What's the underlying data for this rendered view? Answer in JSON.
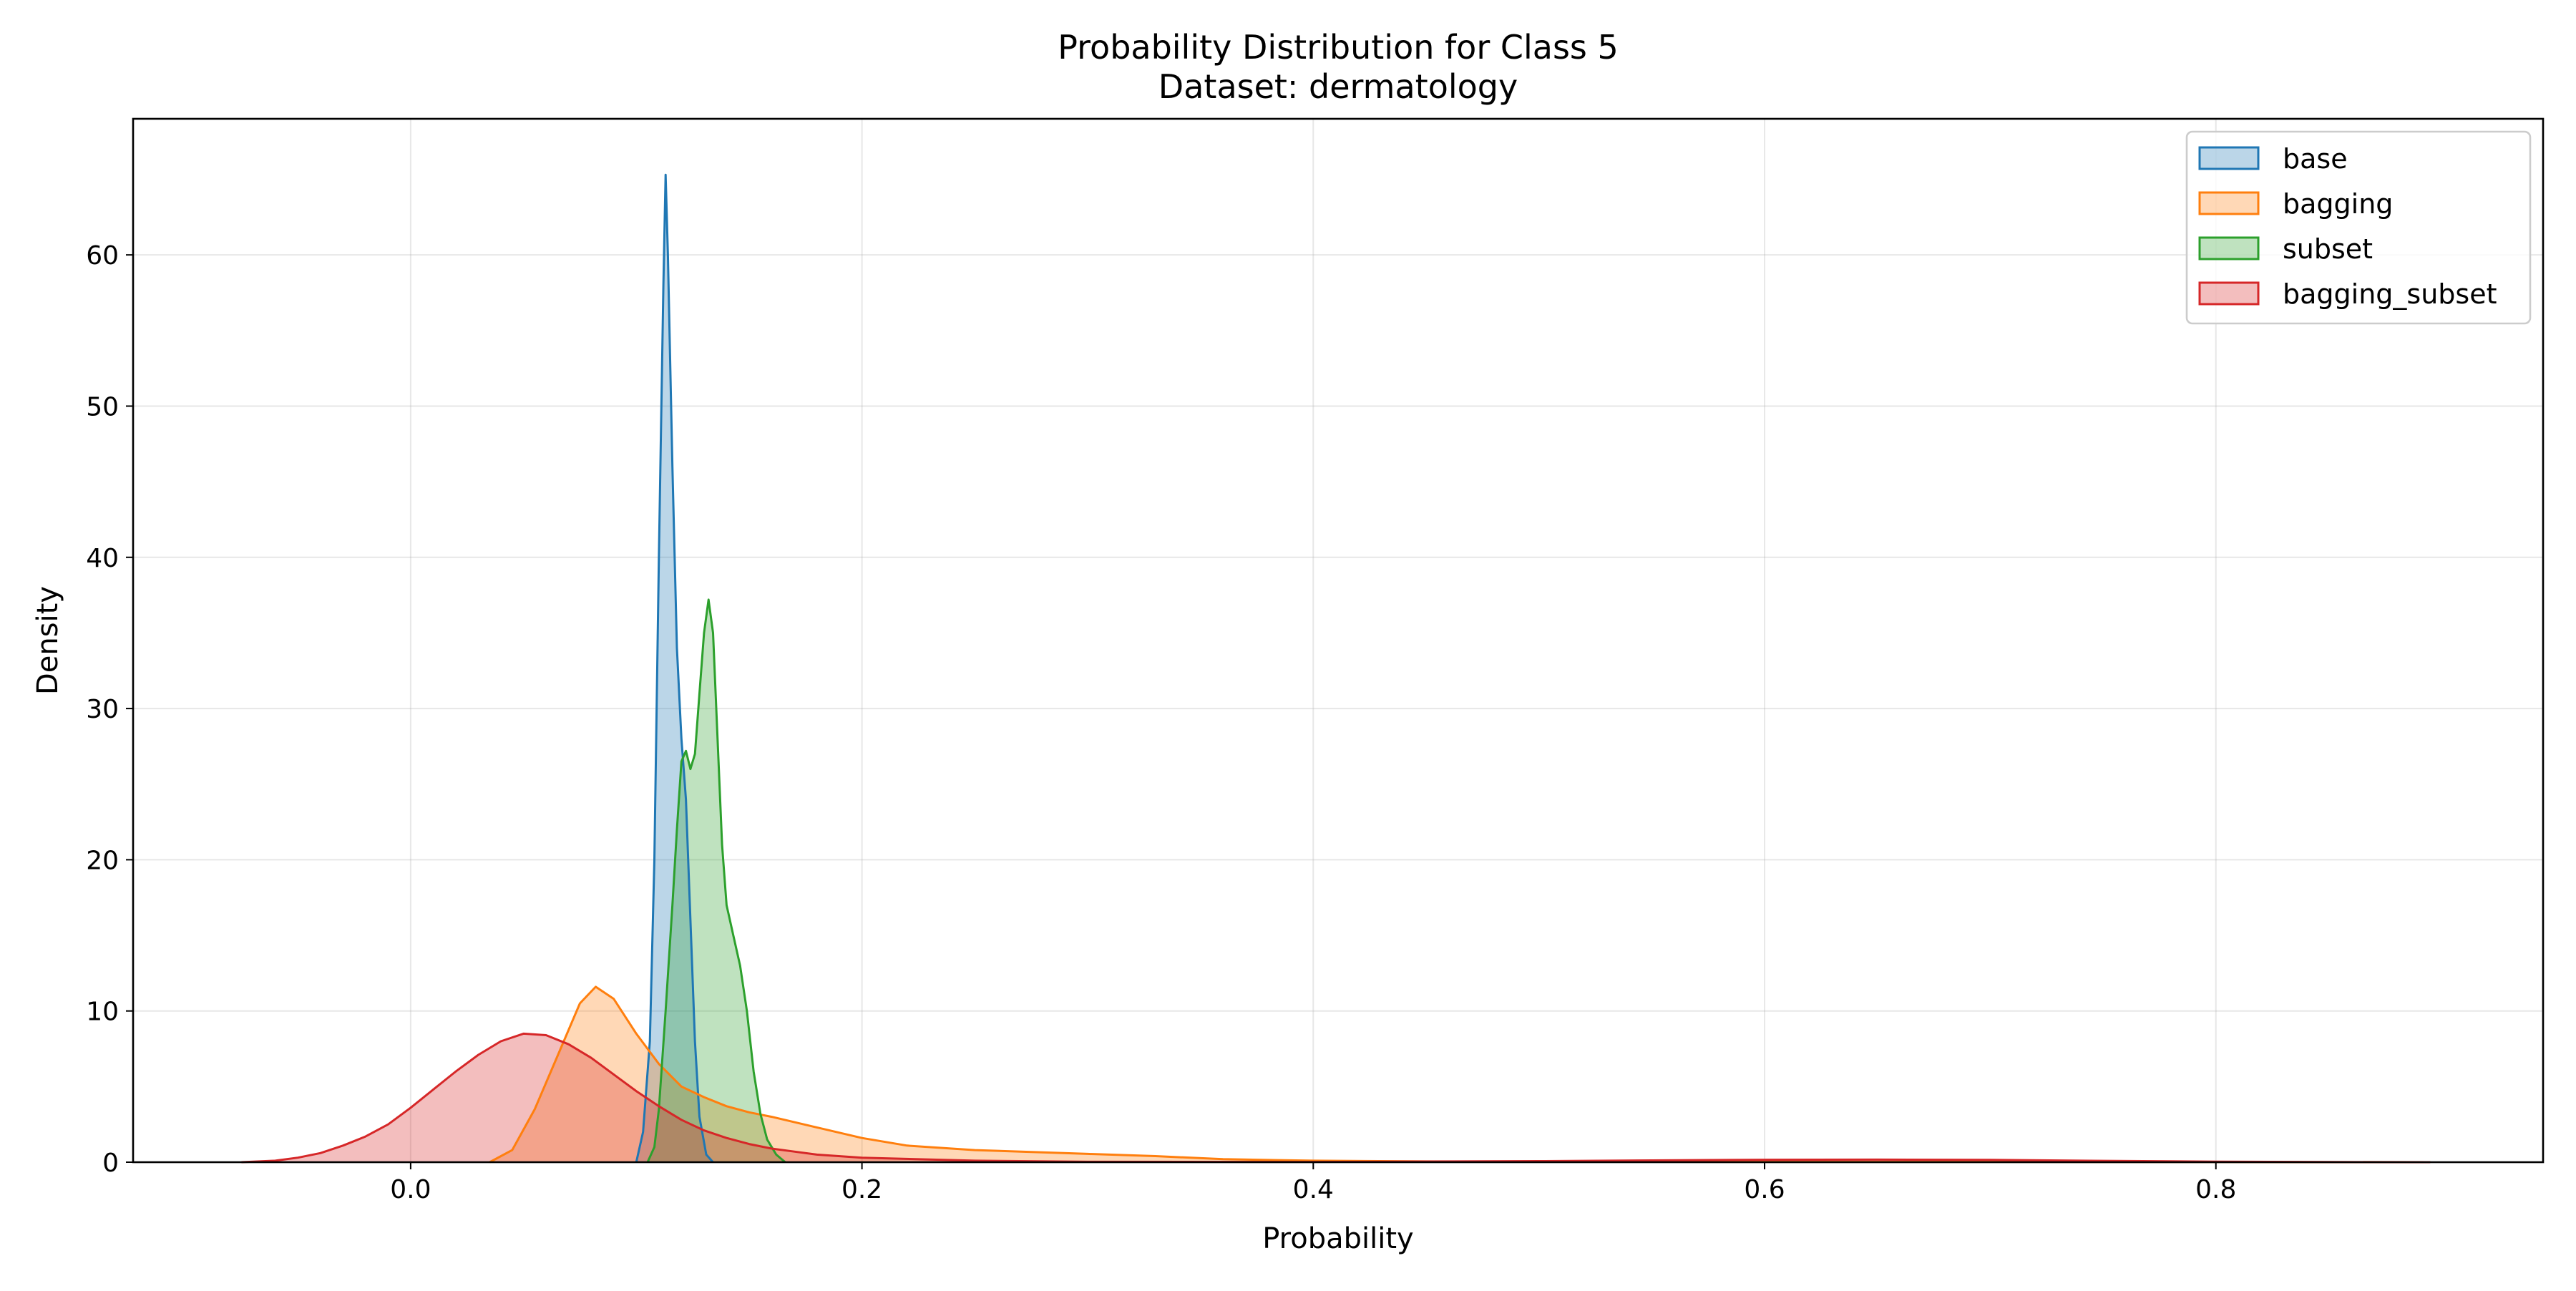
{
  "chart_data": {
    "type": "area",
    "title": "Probability Distribution for Class 5",
    "subtitle": "Dataset: dermatology",
    "xlabel": "Probability",
    "ylabel": "Density",
    "xlim": [
      -0.123,
      0.945
    ],
    "ylim": [
      0,
      69
    ],
    "xticks": [
      0.0,
      0.2,
      0.4,
      0.6,
      0.8
    ],
    "xtick_labels": [
      "0.0",
      "0.2",
      "0.4",
      "0.6",
      "0.8"
    ],
    "yticks": [
      0,
      10,
      20,
      30,
      40,
      50,
      60
    ],
    "ytick_labels": [
      "0",
      "10",
      "20",
      "30",
      "40",
      "50",
      "60"
    ],
    "grid": true,
    "legend_position": "top-right",
    "series": [
      {
        "name": "base",
        "color": "#1f77b4",
        "points": [
          [
            0.1,
            0
          ],
          [
            0.103,
            2
          ],
          [
            0.106,
            8
          ],
          [
            0.108,
            20
          ],
          [
            0.11,
            40
          ],
          [
            0.112,
            58
          ],
          [
            0.113,
            65.3
          ],
          [
            0.114,
            60
          ],
          [
            0.116,
            46
          ],
          [
            0.118,
            34
          ],
          [
            0.12,
            28
          ],
          [
            0.122,
            24
          ],
          [
            0.124,
            16
          ],
          [
            0.126,
            8
          ],
          [
            0.128,
            3
          ],
          [
            0.131,
            0.5
          ],
          [
            0.134,
            0
          ]
        ]
      },
      {
        "name": "bagging",
        "color": "#ff7f0e",
        "points": [
          [
            0.035,
            0
          ],
          [
            0.045,
            0.8
          ],
          [
            0.055,
            3.5
          ],
          [
            0.065,
            7
          ],
          [
            0.075,
            10.5
          ],
          [
            0.082,
            11.6
          ],
          [
            0.09,
            10.8
          ],
          [
            0.1,
            8.5
          ],
          [
            0.11,
            6.5
          ],
          [
            0.12,
            5
          ],
          [
            0.13,
            4.3
          ],
          [
            0.14,
            3.7
          ],
          [
            0.15,
            3.3
          ],
          [
            0.16,
            3.0
          ],
          [
            0.18,
            2.3
          ],
          [
            0.2,
            1.6
          ],
          [
            0.22,
            1.1
          ],
          [
            0.25,
            0.8
          ],
          [
            0.3,
            0.55
          ],
          [
            0.33,
            0.4
          ],
          [
            0.36,
            0.2
          ],
          [
            0.4,
            0.1
          ],
          [
            0.45,
            0.05
          ],
          [
            0.5,
            0.03
          ],
          [
            0.6,
            0.02
          ],
          [
            0.7,
            0.02
          ],
          [
            0.8,
            0.01
          ],
          [
            0.895,
            0
          ]
        ]
      },
      {
        "name": "subset",
        "color": "#2ca02c",
        "points": [
          [
            0.105,
            0
          ],
          [
            0.108,
            1
          ],
          [
            0.11,
            3.5
          ],
          [
            0.113,
            10
          ],
          [
            0.116,
            17
          ],
          [
            0.118,
            22
          ],
          [
            0.12,
            26.5
          ],
          [
            0.122,
            27.2
          ],
          [
            0.124,
            26
          ],
          [
            0.126,
            27
          ],
          [
            0.128,
            31
          ],
          [
            0.13,
            35
          ],
          [
            0.132,
            37.2
          ],
          [
            0.134,
            35
          ],
          [
            0.136,
            28
          ],
          [
            0.138,
            21
          ],
          [
            0.14,
            17
          ],
          [
            0.143,
            15
          ],
          [
            0.146,
            13
          ],
          [
            0.149,
            10
          ],
          [
            0.152,
            6
          ],
          [
            0.155,
            3.2
          ],
          [
            0.158,
            1.5
          ],
          [
            0.162,
            0.5
          ],
          [
            0.166,
            0
          ]
        ]
      },
      {
        "name": "bagging_subset",
        "color": "#d62728",
        "points": [
          [
            -0.075,
            0
          ],
          [
            -0.06,
            0.1
          ],
          [
            -0.05,
            0.3
          ],
          [
            -0.04,
            0.6
          ],
          [
            -0.03,
            1.1
          ],
          [
            -0.02,
            1.7
          ],
          [
            -0.01,
            2.5
          ],
          [
            0.0,
            3.6
          ],
          [
            0.01,
            4.8
          ],
          [
            0.02,
            6.0
          ],
          [
            0.03,
            7.1
          ],
          [
            0.04,
            8.0
          ],
          [
            0.05,
            8.5
          ],
          [
            0.06,
            8.4
          ],
          [
            0.07,
            7.8
          ],
          [
            0.08,
            6.9
          ],
          [
            0.09,
            5.8
          ],
          [
            0.1,
            4.7
          ],
          [
            0.11,
            3.7
          ],
          [
            0.12,
            2.8
          ],
          [
            0.13,
            2.1
          ],
          [
            0.14,
            1.6
          ],
          [
            0.15,
            1.2
          ],
          [
            0.16,
            0.9
          ],
          [
            0.17,
            0.7
          ],
          [
            0.18,
            0.5
          ],
          [
            0.2,
            0.3
          ],
          [
            0.25,
            0.1
          ],
          [
            0.3,
            0.03
          ],
          [
            0.4,
            0.02
          ],
          [
            0.5,
            0.07
          ],
          [
            0.55,
            0.12
          ],
          [
            0.6,
            0.16
          ],
          [
            0.65,
            0.17
          ],
          [
            0.7,
            0.15
          ],
          [
            0.75,
            0.09
          ],
          [
            0.8,
            0.04
          ],
          [
            0.85,
            0.01
          ],
          [
            0.895,
            0
          ]
        ]
      }
    ]
  }
}
